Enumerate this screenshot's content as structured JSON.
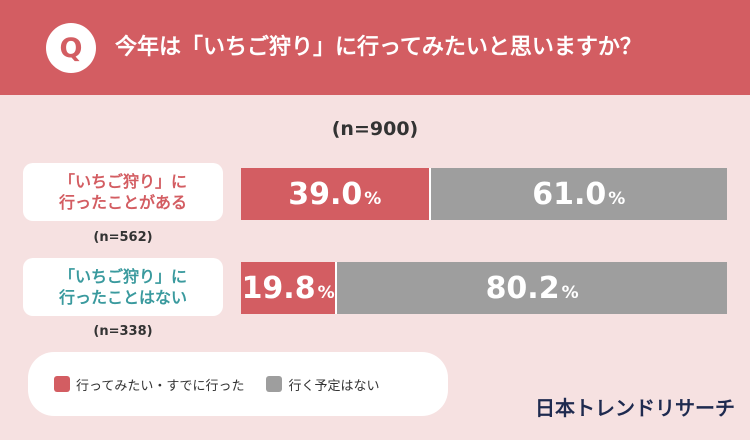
{
  "header": {
    "q_label": "Q",
    "question": "今年は「いちご狩り」に行ってみたいと思いますか？"
  },
  "total_n": "(n=900)",
  "rows": [
    {
      "label_line1": "「いちご狩り」に",
      "label_line2": "行ったことがある",
      "n": "(n=562)"
    },
    {
      "label_line1": "「いちご狩り」に",
      "label_line2": "行ったことはない",
      "n": "(n=338)"
    }
  ],
  "percent_sign": "%",
  "legend": [
    {
      "label": "行ってみたい・すでに行った",
      "color": "#d35d62"
    },
    {
      "label": "行く予定はない",
      "color": "#9e9e9e"
    }
  ],
  "brand": "日本トレンドリサーチ",
  "colors": {
    "header": "#d35d62",
    "background": "#f6e1e1",
    "row2_label": "#3a9a9e"
  },
  "chart_data": {
    "type": "bar",
    "orientation": "horizontal-stacked-100",
    "categories": [
      "「いちご狩り」に行ったことがある",
      "「いちご狩り」に行ったことはない"
    ],
    "series": [
      {
        "name": "行ってみたい・すでに行った",
        "values": [
          39.0,
          19.8
        ],
        "labels": [
          "39.0",
          "19.8"
        ]
      },
      {
        "name": "行く予定はない",
        "values": [
          61.0,
          80.2
        ],
        "labels": [
          "61.0",
          "80.2"
        ]
      }
    ],
    "unit": "%"
  }
}
